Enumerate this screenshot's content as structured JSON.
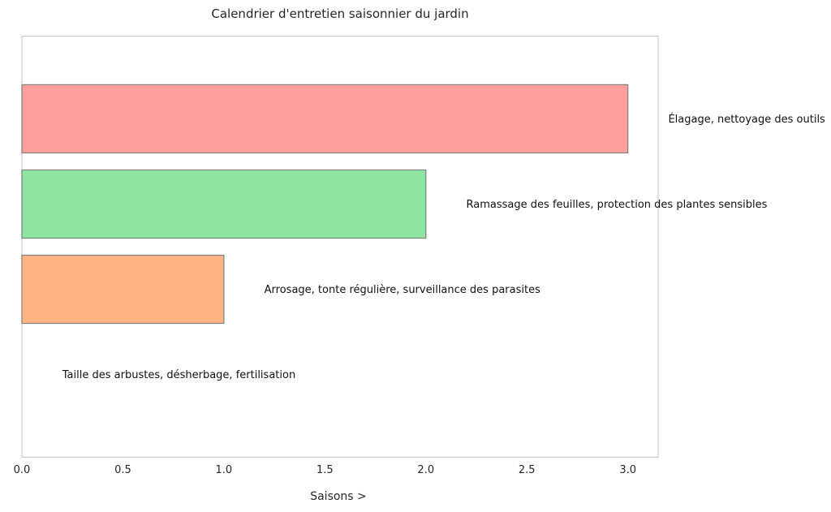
{
  "chart_data": {
    "type": "bar",
    "orientation": "horizontal",
    "title": "Calendrier d'entretien saisonnier du jardin",
    "xlabel": "Saisons >",
    "ylabel": "",
    "xlim": [
      0,
      3.15
    ],
    "ylim": [
      -0.97,
      3.97
    ],
    "xticks": [
      "0.0",
      "0.5",
      "1.0",
      "1.5",
      "2.0",
      "2.5",
      "3.0"
    ],
    "xtick_values": [
      0,
      0.5,
      1,
      1.5,
      2,
      2.5,
      3
    ],
    "grid": false,
    "bars": [
      {
        "value": 0,
        "label": "Taille des arbustes, désherbage, fertilisation",
        "color": "#8fc5e8"
      },
      {
        "value": 1,
        "label": "Arrosage, tonte régulière, surveillance des parasites",
        "color": "#ffb482"
      },
      {
        "value": 2,
        "label": "Ramassage des feuilles, protection des plantes sensibles",
        "color": "#8de5a1"
      },
      {
        "value": 3,
        "label": "Élagage, nettoyage des outils",
        "color": "#ff9f9b"
      }
    ],
    "label_offset": 0.2
  }
}
